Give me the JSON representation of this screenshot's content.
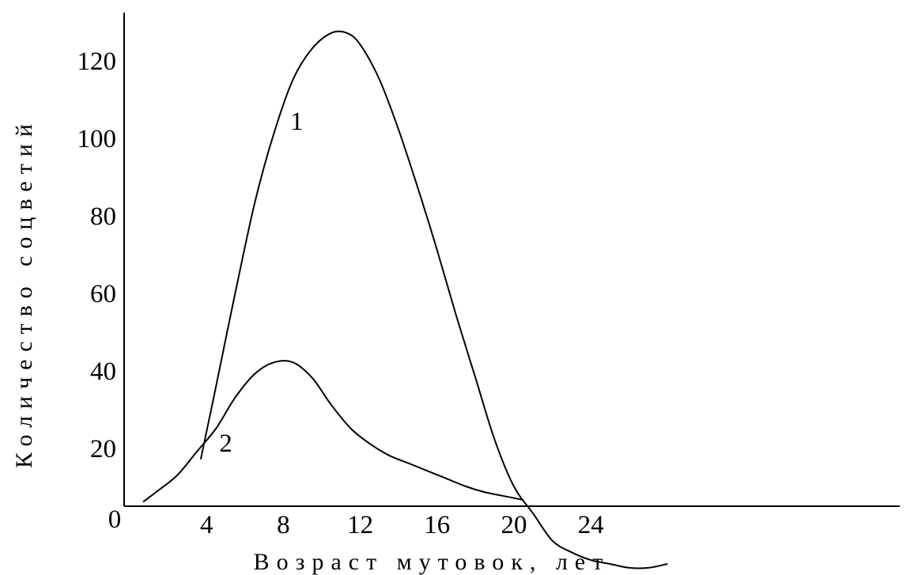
{
  "chart_data": {
    "type": "line",
    "title": "",
    "xlabel": "Возраст мутовок, лет",
    "ylabel": "Количество соцветий",
    "xlim": [
      0,
      28
    ],
    "ylim": [
      0,
      135
    ],
    "x_ticks": [
      4,
      8,
      12,
      16,
      20,
      24
    ],
    "y_ticks": [
      20,
      40,
      60,
      80,
      100,
      120
    ],
    "origin_label": "0",
    "grid": false,
    "legend": "none",
    "series": [
      {
        "name": "1",
        "x": [
          3.7,
          4.5,
          5.5,
          6.5,
          7.5,
          8.5,
          9.5,
          10.5,
          11.3,
          12,
          13,
          14,
          15,
          16,
          17,
          18,
          19,
          20,
          21,
          22,
          23,
          24,
          25,
          26,
          27,
          28
        ],
        "y": [
          17,
          36,
          60,
          83,
          101,
          115,
          123,
          127,
          127,
          124,
          115,
          102,
          87,
          71,
          54,
          38,
          22,
          10,
          3,
          -4,
          -7,
          -9,
          -10,
          -11,
          -11,
          -10
        ]
      },
      {
        "name": "2",
        "x": [
          0.7,
          1.5,
          2.5,
          3.5,
          4.5,
          5.5,
          6.5,
          7.5,
          8.5,
          9.5,
          10.5,
          11.5,
          12.5,
          13.5,
          14.5,
          15.5,
          16.5,
          17.5,
          18.5,
          19.5,
          20.5
        ],
        "y": [
          6,
          9,
          13,
          19,
          25,
          33,
          39,
          42,
          42,
          38,
          31,
          25,
          21,
          18,
          16,
          14,
          12,
          10,
          8.5,
          7.5,
          6.5
        ]
      }
    ]
  }
}
